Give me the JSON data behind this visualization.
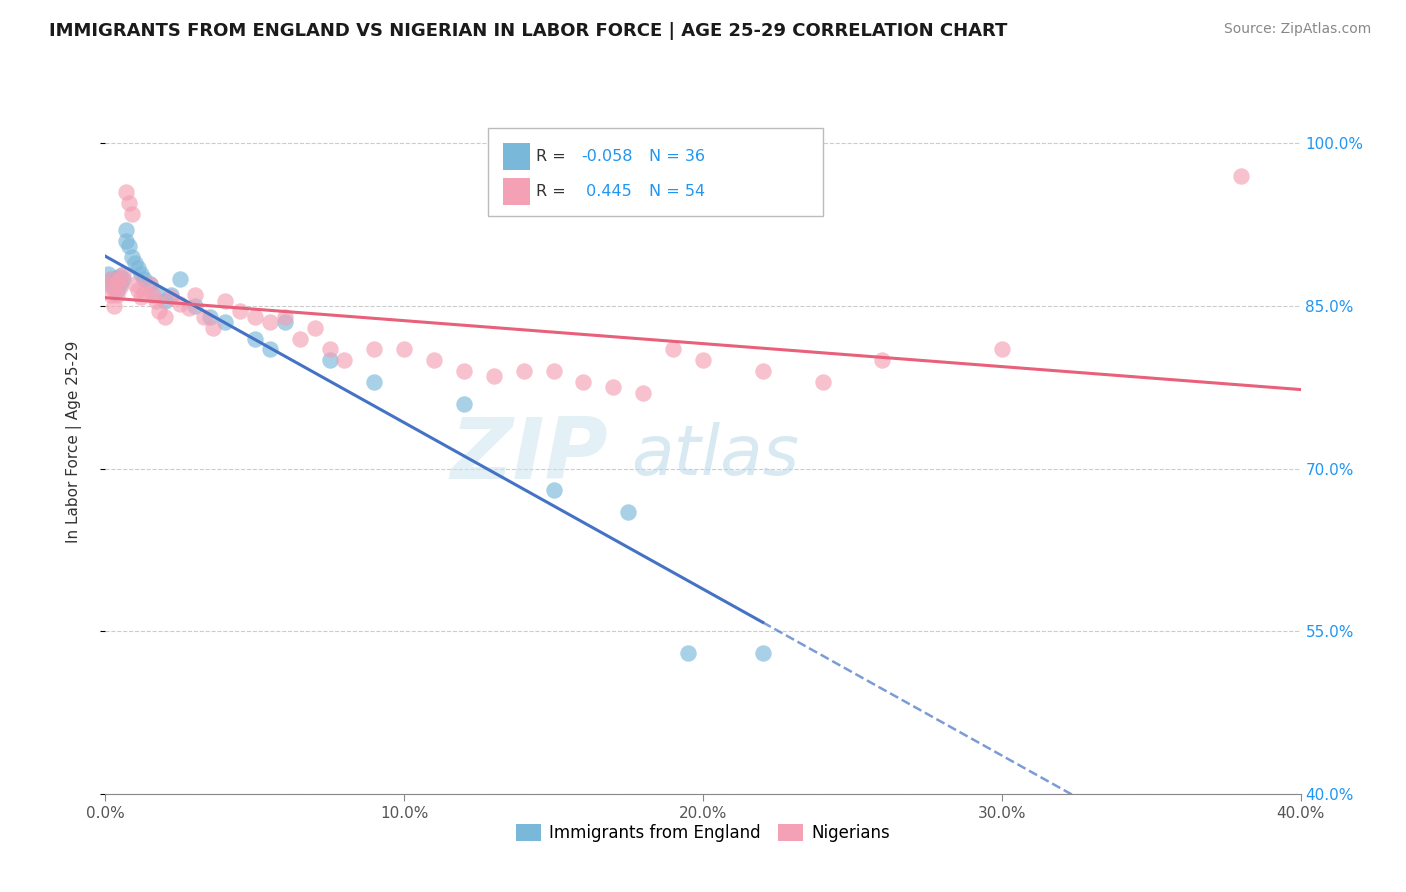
{
  "title": "IMMIGRANTS FROM ENGLAND VS NIGERIAN IN LABOR FORCE | AGE 25-29 CORRELATION CHART",
  "source": "Source: ZipAtlas.com",
  "ylabel": "In Labor Force | Age 25-29",
  "xlim": [
    0.0,
    0.4
  ],
  "ylim": [
    0.4,
    1.05
  ],
  "xtick_positions": [
    0.0,
    0.1,
    0.2,
    0.3,
    0.4
  ],
  "xticklabels": [
    "0.0%",
    "10.0%",
    "20.0%",
    "30.0%",
    "40.0%"
  ],
  "ytick_positions": [
    0.4,
    0.55,
    0.7,
    0.85,
    1.0
  ],
  "yticklabels_right": [
    "40.0%",
    "55.0%",
    "70.0%",
    "85.0%",
    "100.0%"
  ],
  "england_color": "#7ab8d9",
  "nigerian_color": "#f4a0b5",
  "england_line_color": "#4472c4",
  "nigerian_line_color": "#e8607a",
  "background_color": "#ffffff",
  "england_R": -0.058,
  "england_N": 36,
  "nigerian_R": 0.445,
  "nigerian_N": 54,
  "england_x": [
    0.001,
    0.002,
    0.002,
    0.003,
    0.003,
    0.004,
    0.004,
    0.005,
    0.005,
    0.006,
    0.007,
    0.007,
    0.008,
    0.009,
    0.01,
    0.011,
    0.012,
    0.013,
    0.015,
    0.017,
    0.02,
    0.022,
    0.025,
    0.03,
    0.035,
    0.04,
    0.05,
    0.055,
    0.06,
    0.075,
    0.09,
    0.12,
    0.15,
    0.175,
    0.195,
    0.22
  ],
  "england_y": [
    0.88,
    0.875,
    0.87,
    0.872,
    0.868,
    0.876,
    0.865,
    0.87,
    0.878,
    0.875,
    0.92,
    0.91,
    0.905,
    0.895,
    0.89,
    0.885,
    0.88,
    0.875,
    0.87,
    0.862,
    0.855,
    0.86,
    0.875,
    0.85,
    0.84,
    0.835,
    0.82,
    0.81,
    0.835,
    0.8,
    0.78,
    0.76,
    0.68,
    0.66,
    0.53,
    0.53
  ],
  "nigerian_x": [
    0.001,
    0.002,
    0.002,
    0.003,
    0.003,
    0.004,
    0.004,
    0.005,
    0.005,
    0.006,
    0.007,
    0.008,
    0.009,
    0.01,
    0.011,
    0.012,
    0.013,
    0.015,
    0.016,
    0.017,
    0.018,
    0.02,
    0.022,
    0.025,
    0.028,
    0.03,
    0.033,
    0.036,
    0.04,
    0.045,
    0.05,
    0.055,
    0.06,
    0.065,
    0.07,
    0.075,
    0.08,
    0.09,
    0.1,
    0.11,
    0.12,
    0.13,
    0.14,
    0.15,
    0.16,
    0.17,
    0.18,
    0.19,
    0.2,
    0.22,
    0.24,
    0.26,
    0.3,
    0.38
  ],
  "nigerian_y": [
    0.87,
    0.86,
    0.875,
    0.865,
    0.85,
    0.872,
    0.86,
    0.868,
    0.875,
    0.88,
    0.955,
    0.945,
    0.935,
    0.87,
    0.865,
    0.858,
    0.862,
    0.87,
    0.86,
    0.855,
    0.845,
    0.84,
    0.858,
    0.852,
    0.848,
    0.86,
    0.84,
    0.83,
    0.855,
    0.845,
    0.84,
    0.835,
    0.84,
    0.82,
    0.83,
    0.81,
    0.8,
    0.81,
    0.81,
    0.8,
    0.79,
    0.785,
    0.79,
    0.79,
    0.78,
    0.775,
    0.77,
    0.81,
    0.8,
    0.79,
    0.78,
    0.8,
    0.81,
    0.97
  ]
}
